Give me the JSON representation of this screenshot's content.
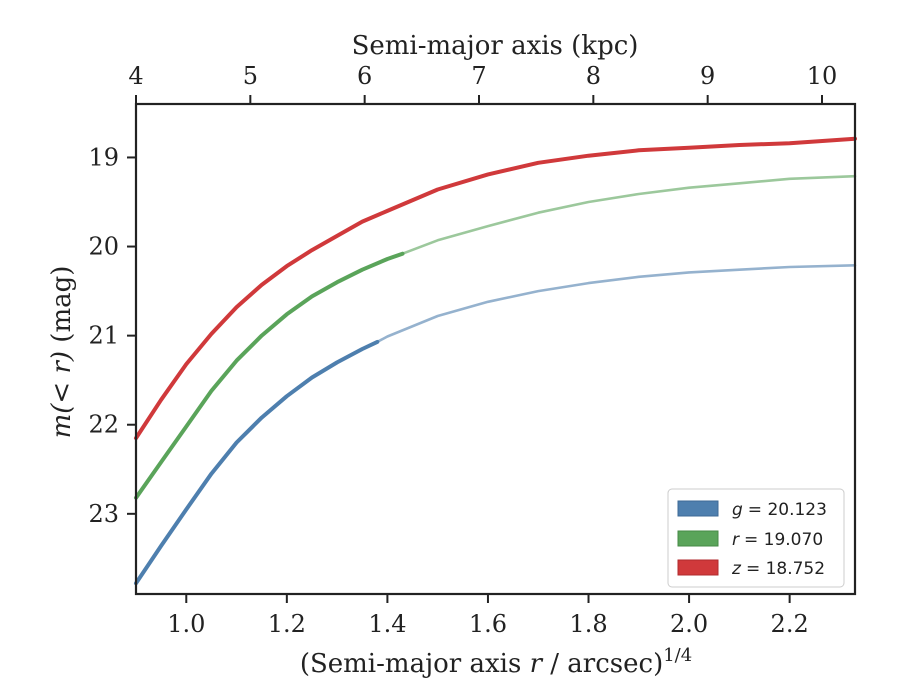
{
  "chart_data": {
    "type": "line",
    "xlabel_main": "(Semi-major axis ",
    "xlabel_var": "r",
    "xlabel_tail": " / arcsec)",
    "xlabel_sup": "1/4",
    "xlabel_top": "Semi-major axis (kpc)",
    "ylabel_pre": "m(< r)",
    "ylabel_post": " (mag)",
    "xlim": [
      0.9,
      2.33
    ],
    "ylim": [
      23.9,
      18.4
    ],
    "y_inverted": true,
    "x_ticks": [
      1.0,
      1.2,
      1.4,
      1.6,
      1.8,
      2.0,
      2.2
    ],
    "x_tick_labels": [
      "1.0",
      "1.2",
      "1.4",
      "1.6",
      "1.8",
      "2.0",
      "2.2"
    ],
    "y_ticks": [
      19,
      20,
      21,
      22,
      23
    ],
    "y_tick_labels": [
      "19",
      "20",
      "21",
      "22",
      "23"
    ],
    "top_ticks_kpc": [
      4,
      5,
      6,
      7,
      8,
      9,
      10
    ],
    "top_tick_labels": [
      "4",
      "5",
      "6",
      "7",
      "8",
      "9",
      "10"
    ],
    "legend_position": "bottom-right",
    "grid": false,
    "series": [
      {
        "name": "g = 20.123",
        "legend_var": "g",
        "legend_value": "= 20.123",
        "color": "#4e7fae",
        "solid_end_x": 1.38,
        "points": [
          [
            0.9,
            23.78
          ],
          [
            0.95,
            23.36
          ],
          [
            1.0,
            22.95
          ],
          [
            1.05,
            22.55
          ],
          [
            1.1,
            22.2
          ],
          [
            1.15,
            21.92
          ],
          [
            1.2,
            21.68
          ],
          [
            1.25,
            21.47
          ],
          [
            1.3,
            21.3
          ],
          [
            1.35,
            21.15
          ],
          [
            1.38,
            21.07
          ],
          [
            1.4,
            21.01
          ],
          [
            1.5,
            20.78
          ],
          [
            1.6,
            20.62
          ],
          [
            1.7,
            20.5
          ],
          [
            1.8,
            20.41
          ],
          [
            1.9,
            20.34
          ],
          [
            2.0,
            20.29
          ],
          [
            2.1,
            20.26
          ],
          [
            2.2,
            20.23
          ],
          [
            2.33,
            20.21
          ]
        ]
      },
      {
        "name": "r = 19.070",
        "legend_var": "r",
        "legend_value": "= 19.070",
        "color": "#5aa45a",
        "solid_end_x": 1.43,
        "points": [
          [
            0.9,
            22.82
          ],
          [
            0.95,
            22.42
          ],
          [
            1.0,
            22.02
          ],
          [
            1.05,
            21.62
          ],
          [
            1.1,
            21.28
          ],
          [
            1.15,
            21.0
          ],
          [
            1.2,
            20.76
          ],
          [
            1.25,
            20.56
          ],
          [
            1.3,
            20.4
          ],
          [
            1.35,
            20.26
          ],
          [
            1.4,
            20.14
          ],
          [
            1.43,
            20.08
          ],
          [
            1.5,
            19.93
          ],
          [
            1.6,
            19.77
          ],
          [
            1.7,
            19.62
          ],
          [
            1.8,
            19.5
          ],
          [
            1.9,
            19.41
          ],
          [
            2.0,
            19.34
          ],
          [
            2.1,
            19.29
          ],
          [
            2.2,
            19.24
          ],
          [
            2.33,
            19.21
          ]
        ]
      },
      {
        "name": "z = 18.752",
        "legend_var": "z",
        "legend_value": "= 18.752",
        "color": "#d0393b",
        "solid_end_x": 2.33,
        "points": [
          [
            0.9,
            22.15
          ],
          [
            0.95,
            21.72
          ],
          [
            1.0,
            21.32
          ],
          [
            1.05,
            20.98
          ],
          [
            1.1,
            20.68
          ],
          [
            1.15,
            20.43
          ],
          [
            1.2,
            20.22
          ],
          [
            1.25,
            20.04
          ],
          [
            1.3,
            19.88
          ],
          [
            1.35,
            19.72
          ],
          [
            1.4,
            19.6
          ],
          [
            1.5,
            19.36
          ],
          [
            1.6,
            19.19
          ],
          [
            1.7,
            19.06
          ],
          [
            1.8,
            18.98
          ],
          [
            1.9,
            18.92
          ],
          [
            2.0,
            18.89
          ],
          [
            2.1,
            18.86
          ],
          [
            2.2,
            18.84
          ],
          [
            2.33,
            18.79
          ]
        ]
      }
    ]
  }
}
